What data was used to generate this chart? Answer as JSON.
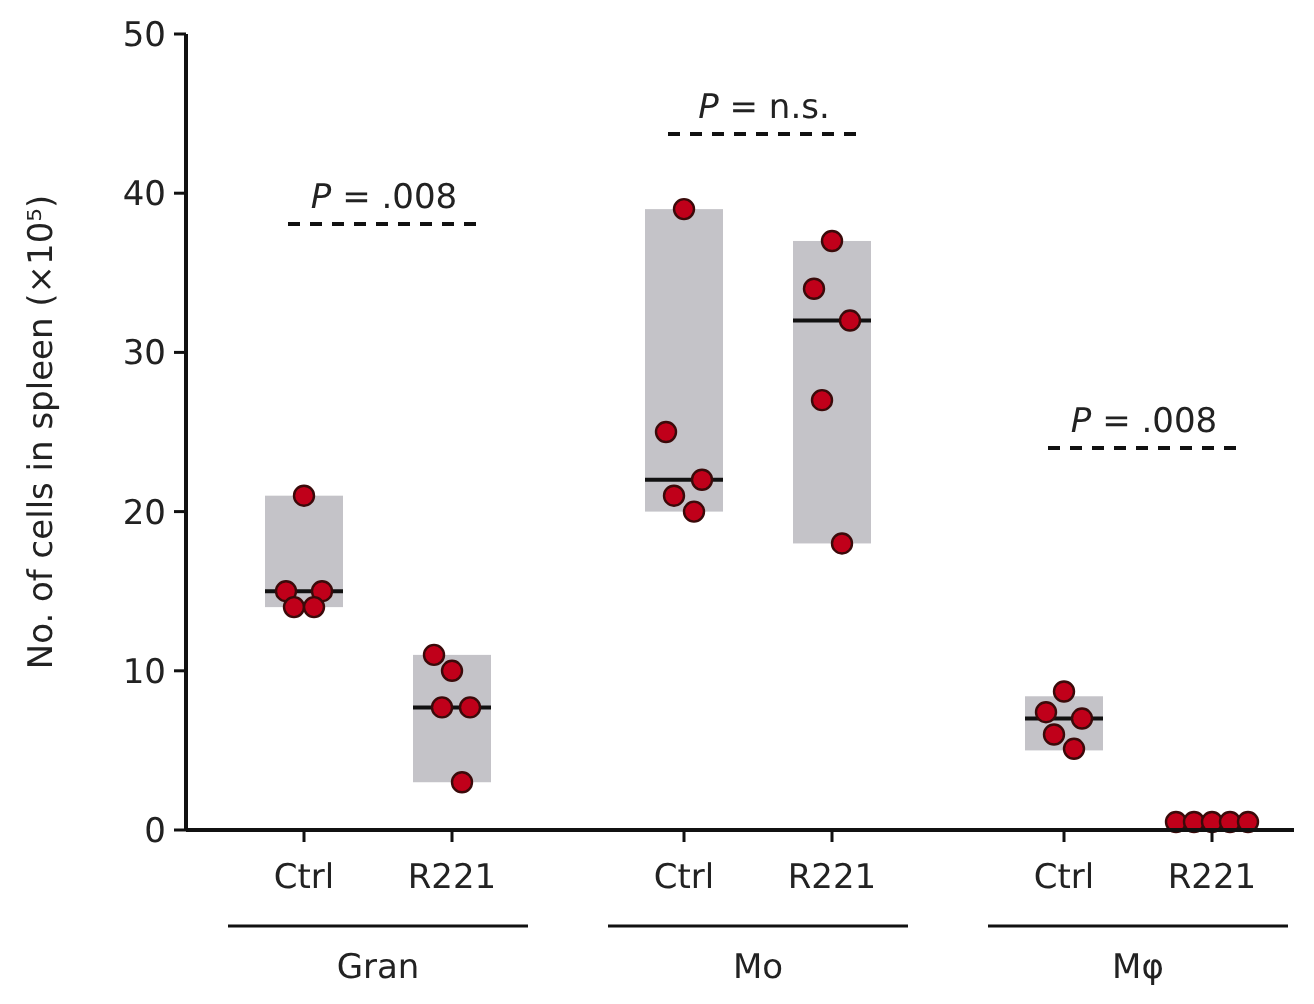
{
  "chart_data": {
    "type": "box",
    "ylabel": "No. of cells in spleen (×10⁵)",
    "categories": [
      "Ctrl",
      "R221",
      "Ctrl",
      "R221",
      "Ctrl",
      "R221"
    ],
    "boxes": [
      {
        "low": 14,
        "q1": 14,
        "median": 15,
        "q3": 21,
        "high": 21
      },
      {
        "low": 3,
        "q1": 3,
        "median": 7.7,
        "q3": 11,
        "high": 11
      },
      {
        "low": 20,
        "q1": 20,
        "median": 22,
        "q3": 39,
        "high": 39
      },
      {
        "low": 18,
        "q1": 18,
        "median": 32,
        "q3": 37,
        "high": 37
      },
      {
        "low": 5,
        "q1": 5,
        "median": 7,
        "q3": 8.4,
        "high": 8.4
      },
      {
        "low": 0.3,
        "q1": 0.3,
        "median": 0.5,
        "q3": 0.8,
        "high": 0.8
      }
    ],
    "color": "#c4c3c8",
    "series": [
      {
        "type": "scatter",
        "color": "#c0001a",
        "values": [
          21,
          10,
          39,
          37,
          8.7,
          0.5
        ]
      },
      {
        "type": "scatter",
        "color": "#c0001a",
        "values": [
          15,
          11,
          25,
          34,
          7.4,
          0.5
        ]
      },
      {
        "type": "scatter",
        "color": "#c0001a",
        "values": [
          15,
          7.7,
          22,
          32,
          7.0,
          0.5
        ]
      },
      {
        "type": "scatter",
        "color": "#c0001a",
        "values": [
          14,
          7.7,
          21,
          27,
          6.0,
          0.5
        ]
      },
      {
        "type": "scatter",
        "color": "#c0001a",
        "values": [
          14,
          3,
          20,
          18,
          5.1,
          0.5
        ]
      }
    ],
    "marker": "circle",
    "annotations": [
      "P = .008",
      "P = n.s.",
      "P = .008",
      "Gran",
      "Mo",
      "Mφ"
    ],
    "ylim": [
      0,
      50
    ],
    "yticks": [
      0,
      10,
      20,
      30,
      40,
      50
    ],
    "grid": false
  }
}
